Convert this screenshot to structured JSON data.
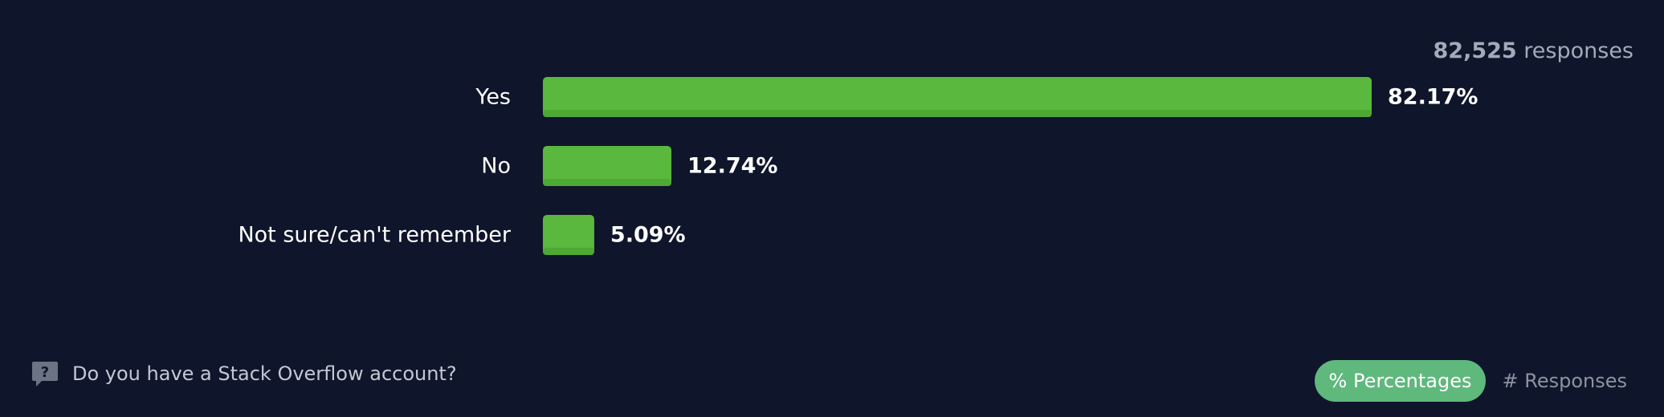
{
  "header": {
    "responses_number": "82,525",
    "responses_word": "responses"
  },
  "chart_data": {
    "type": "bar",
    "orientation": "horizontal",
    "categories": [
      "Yes",
      "No",
      "Not sure/can't remember"
    ],
    "values": [
      82.17,
      12.74,
      5.09
    ],
    "value_labels": [
      "82.17%",
      "12.74%",
      "5.09%"
    ],
    "unit": "%",
    "bar_color": "#5ab83e",
    "grid": false
  },
  "footer": {
    "question": "Do you have a Stack Overflow account?",
    "question_icon": "question-bubble-icon",
    "toggle": {
      "percentages_label": "% Percentages",
      "responses_label": "# Responses",
      "active": "percentages",
      "active_color": "#5fb87c"
    }
  }
}
